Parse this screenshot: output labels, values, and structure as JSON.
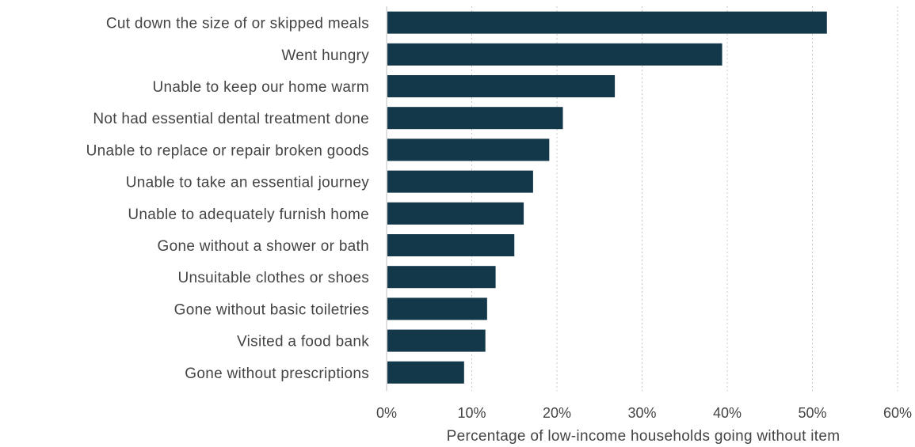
{
  "chart_data": {
    "type": "bar",
    "orientation": "horizontal",
    "categories": [
      "Cut down the size of or skipped meals",
      "Went hungry",
      "Unable to keep our home warm",
      "Not had essential dental treatment done",
      "Unable to replace or repair broken goods",
      "Unable to take an essential journey",
      "Unable to adequately furnish home",
      "Gone without a shower or bath",
      "Unsuitable clothes or shoes",
      "Gone without basic toiletries",
      "Visited a food bank",
      "Gone without prescriptions"
    ],
    "values": [
      51.7,
      39.4,
      26.8,
      20.7,
      19.1,
      17.2,
      16.1,
      15.0,
      12.8,
      11.8,
      11.6,
      9.1
    ],
    "xlabel": "Percentage of low-income households going without item",
    "ylabel": "",
    "xlim": [
      0,
      60
    ],
    "xticks": [
      "0%",
      "10%",
      "20%",
      "30%",
      "40%",
      "50%",
      "60%"
    ],
    "grid": "vertical-dotted",
    "bar_color": "#13384a"
  }
}
